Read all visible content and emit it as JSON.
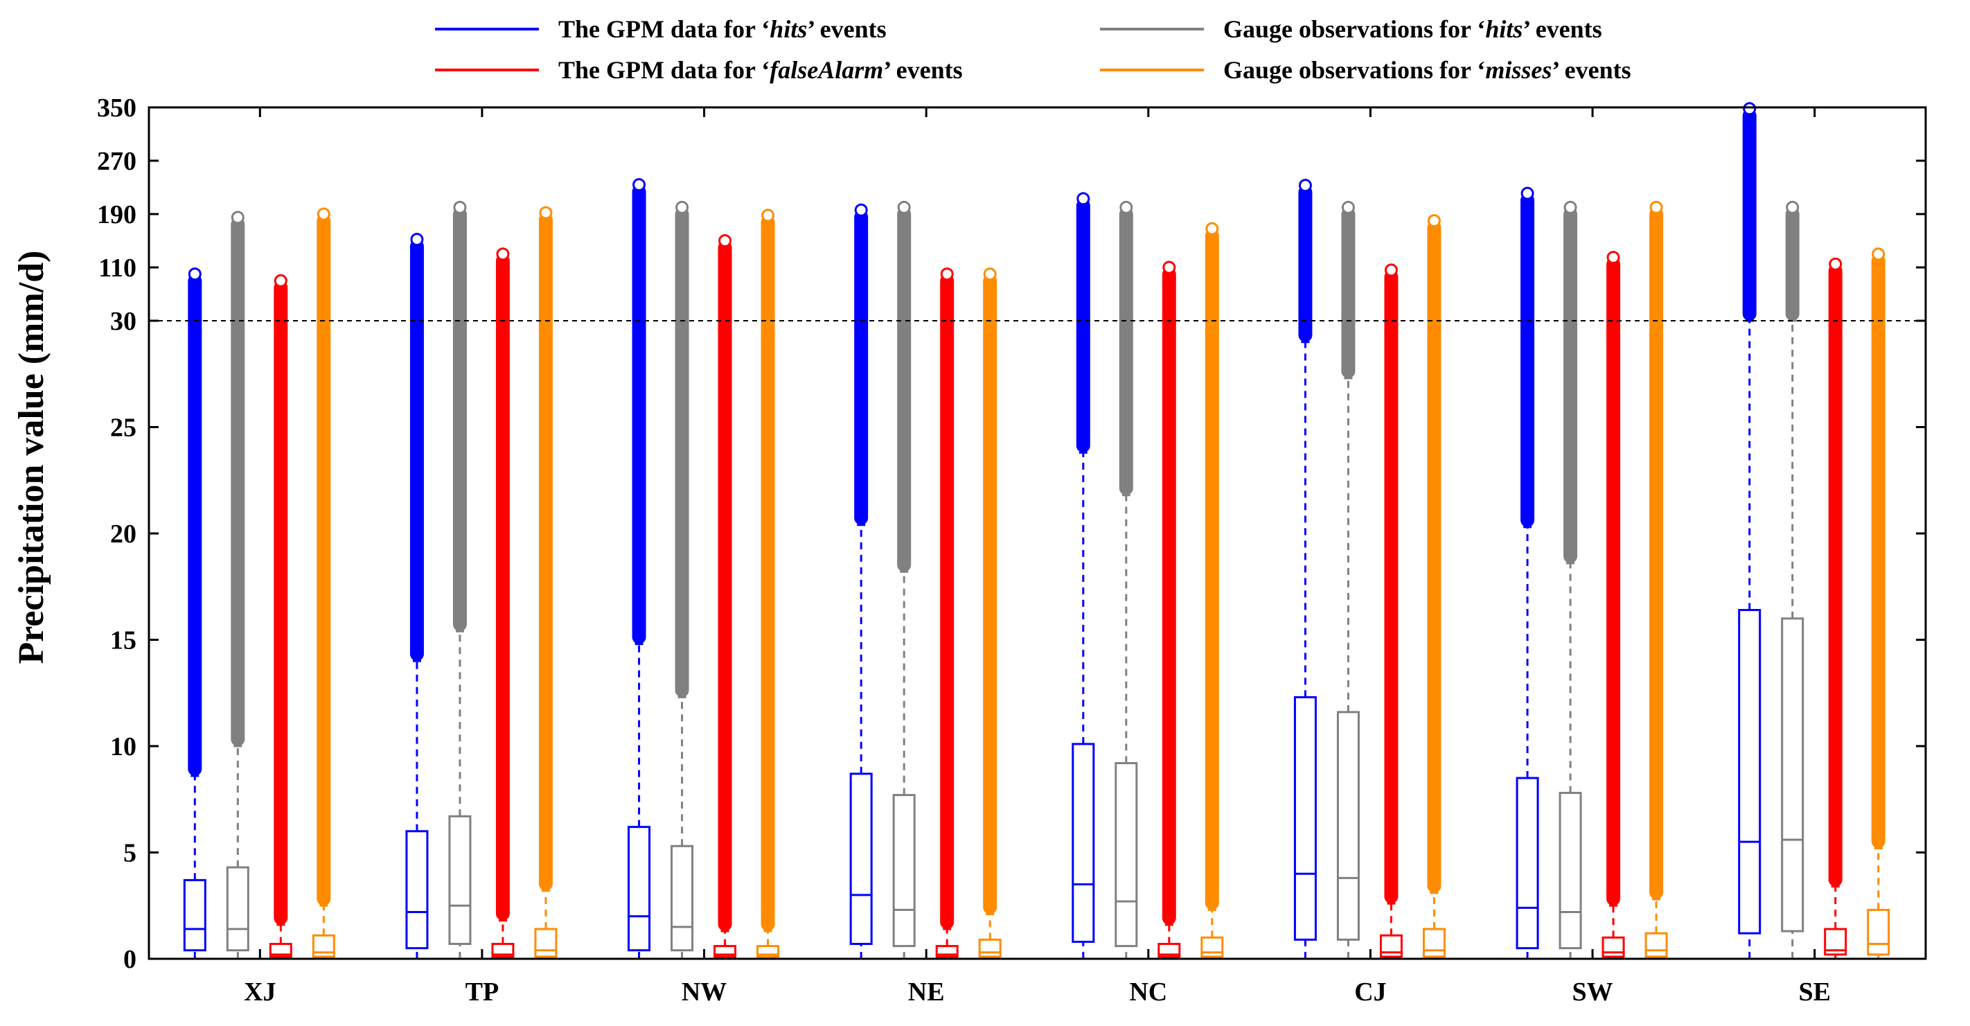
{
  "chart_data": {
    "type": "box",
    "ylabel": "Precipitation value (mm/d)",
    "xlabel": "",
    "y_axis_note": "broken scale: linear 0–30, compressed 30–350",
    "ytick_labels": [
      "0",
      "5",
      "10",
      "15",
      "20",
      "25",
      "30",
      "110",
      "190",
      "270",
      "350"
    ],
    "ytick_values": [
      0,
      5,
      10,
      15,
      20,
      25,
      30,
      110,
      190,
      270,
      350
    ],
    "threshold_line": {
      "value": 30,
      "style": "dashed"
    },
    "grid": false,
    "legend_position": "top",
    "categories": [
      "XJ",
      "TP",
      "NW",
      "NE",
      "NC",
      "CJ",
      "SW",
      "SE"
    ],
    "series": [
      {
        "legend_prefix": "The GPM data for ‘",
        "legend_key": "hits",
        "legend_suffix": "’ events",
        "color": "#0000FF",
        "boxes": [
          {
            "q1": 0.4,
            "median": 1.4,
            "q3": 3.7,
            "whisker_low": 0,
            "whisker_high": 8.6,
            "outlier_max": 100
          },
          {
            "q1": 0.5,
            "median": 2.2,
            "q3": 6.0,
            "whisker_low": 0,
            "whisker_high": 14.0,
            "outlier_max": 152
          },
          {
            "q1": 0.4,
            "median": 2.0,
            "q3": 6.2,
            "whisker_low": 0,
            "whisker_high": 14.8,
            "outlier_max": 234
          },
          {
            "q1": 0.7,
            "median": 3.0,
            "q3": 8.7,
            "whisker_low": 0,
            "whisker_high": 20.4,
            "outlier_max": 196
          },
          {
            "q1": 0.8,
            "median": 3.5,
            "q3": 10.1,
            "whisker_low": 0,
            "whisker_high": 23.8,
            "outlier_max": 213
          },
          {
            "q1": 0.9,
            "median": 4.0,
            "q3": 12.3,
            "whisker_low": 0,
            "whisker_high": 29.0,
            "outlier_max": 233
          },
          {
            "q1": 0.5,
            "median": 2.4,
            "q3": 8.5,
            "whisker_low": 0,
            "whisker_high": 20.3,
            "outlier_max": 221
          },
          {
            "q1": 1.2,
            "median": 5.5,
            "q3": 16.4,
            "whisker_low": 0,
            "whisker_high": 30,
            "outlier_max": 348
          }
        ]
      },
      {
        "legend_prefix": "Gauge observations for ‘",
        "legend_key": "hits",
        "legend_suffix": "’ events",
        "color": "#808080",
        "boxes": [
          {
            "q1": 0.4,
            "median": 1.4,
            "q3": 4.3,
            "whisker_low": 0,
            "whisker_high": 10.0,
            "outlier_max": 185
          },
          {
            "q1": 0.7,
            "median": 2.5,
            "q3": 6.7,
            "whisker_low": 0,
            "whisker_high": 15.4,
            "outlier_max": 200
          },
          {
            "q1": 0.4,
            "median": 1.5,
            "q3": 5.3,
            "whisker_low": 0,
            "whisker_high": 12.3,
            "outlier_max": 200
          },
          {
            "q1": 0.6,
            "median": 2.3,
            "q3": 7.7,
            "whisker_low": 0,
            "whisker_high": 18.2,
            "outlier_max": 200
          },
          {
            "q1": 0.6,
            "median": 2.7,
            "q3": 9.2,
            "whisker_low": 0,
            "whisker_high": 21.8,
            "outlier_max": 200
          },
          {
            "q1": 0.9,
            "median": 3.8,
            "q3": 11.6,
            "whisker_low": 0,
            "whisker_high": 27.3,
            "outlier_max": 200
          },
          {
            "q1": 0.5,
            "median": 2.2,
            "q3": 7.8,
            "whisker_low": 0,
            "whisker_high": 18.6,
            "outlier_max": 200
          },
          {
            "q1": 1.3,
            "median": 5.6,
            "q3": 16.0,
            "whisker_low": 0,
            "whisker_high": 30,
            "outlier_max": 200
          }
        ]
      },
      {
        "legend_prefix": "The GPM data for ‘",
        "legend_key": "falseAlarm",
        "legend_suffix": "’ events",
        "color": "#FF0000",
        "boxes": [
          {
            "q1": 0.1,
            "median": 0.2,
            "q3": 0.7,
            "whisker_low": 0,
            "whisker_high": 1.6,
            "outlier_max": 90
          },
          {
            "q1": 0.1,
            "median": 0.2,
            "q3": 0.7,
            "whisker_low": 0,
            "whisker_high": 1.8,
            "outlier_max": 130
          },
          {
            "q1": 0.1,
            "median": 0.2,
            "q3": 0.6,
            "whisker_low": 0,
            "whisker_high": 1.3,
            "outlier_max": 150
          },
          {
            "q1": 0.1,
            "median": 0.2,
            "q3": 0.6,
            "whisker_low": 0,
            "whisker_high": 1.4,
            "outlier_max": 100
          },
          {
            "q1": 0.1,
            "median": 0.2,
            "q3": 0.7,
            "whisker_low": 0,
            "whisker_high": 1.6,
            "outlier_max": 110
          },
          {
            "q1": 0.1,
            "median": 0.3,
            "q3": 1.1,
            "whisker_low": 0,
            "whisker_high": 2.6,
            "outlier_max": 106
          },
          {
            "q1": 0.1,
            "median": 0.3,
            "q3": 1.0,
            "whisker_low": 0,
            "whisker_high": 2.5,
            "outlier_max": 125
          },
          {
            "q1": 0.2,
            "median": 0.4,
            "q3": 1.4,
            "whisker_low": 0,
            "whisker_high": 3.4,
            "outlier_max": 115
          }
        ]
      },
      {
        "legend_prefix": "Gauge observations for ‘",
        "legend_key": "misses",
        "legend_suffix": "’ events",
        "color": "#FF8C00",
        "boxes": [
          {
            "q1": 0.1,
            "median": 0.3,
            "q3": 1.1,
            "whisker_low": 0,
            "whisker_high": 2.5,
            "outlier_max": 190
          },
          {
            "q1": 0.1,
            "median": 0.4,
            "q3": 1.4,
            "whisker_low": 0,
            "whisker_high": 3.2,
            "outlier_max": 192
          },
          {
            "q1": 0.1,
            "median": 0.2,
            "q3": 0.6,
            "whisker_low": 0,
            "whisker_high": 1.3,
            "outlier_max": 188
          },
          {
            "q1": 0.1,
            "median": 0.3,
            "q3": 0.9,
            "whisker_low": 0,
            "whisker_high": 2.1,
            "outlier_max": 100
          },
          {
            "q1": 0.1,
            "median": 0.3,
            "q3": 1.0,
            "whisker_low": 0,
            "whisker_high": 2.3,
            "outlier_max": 168
          },
          {
            "q1": 0.1,
            "median": 0.4,
            "q3": 1.4,
            "whisker_low": 0,
            "whisker_high": 3.1,
            "outlier_max": 180
          },
          {
            "q1": 0.1,
            "median": 0.4,
            "q3": 1.2,
            "whisker_low": 0,
            "whisker_high": 2.8,
            "outlier_max": 200
          },
          {
            "q1": 0.2,
            "median": 0.7,
            "q3": 2.3,
            "whisker_low": 0,
            "whisker_high": 5.2,
            "outlier_max": 130
          }
        ]
      }
    ]
  }
}
